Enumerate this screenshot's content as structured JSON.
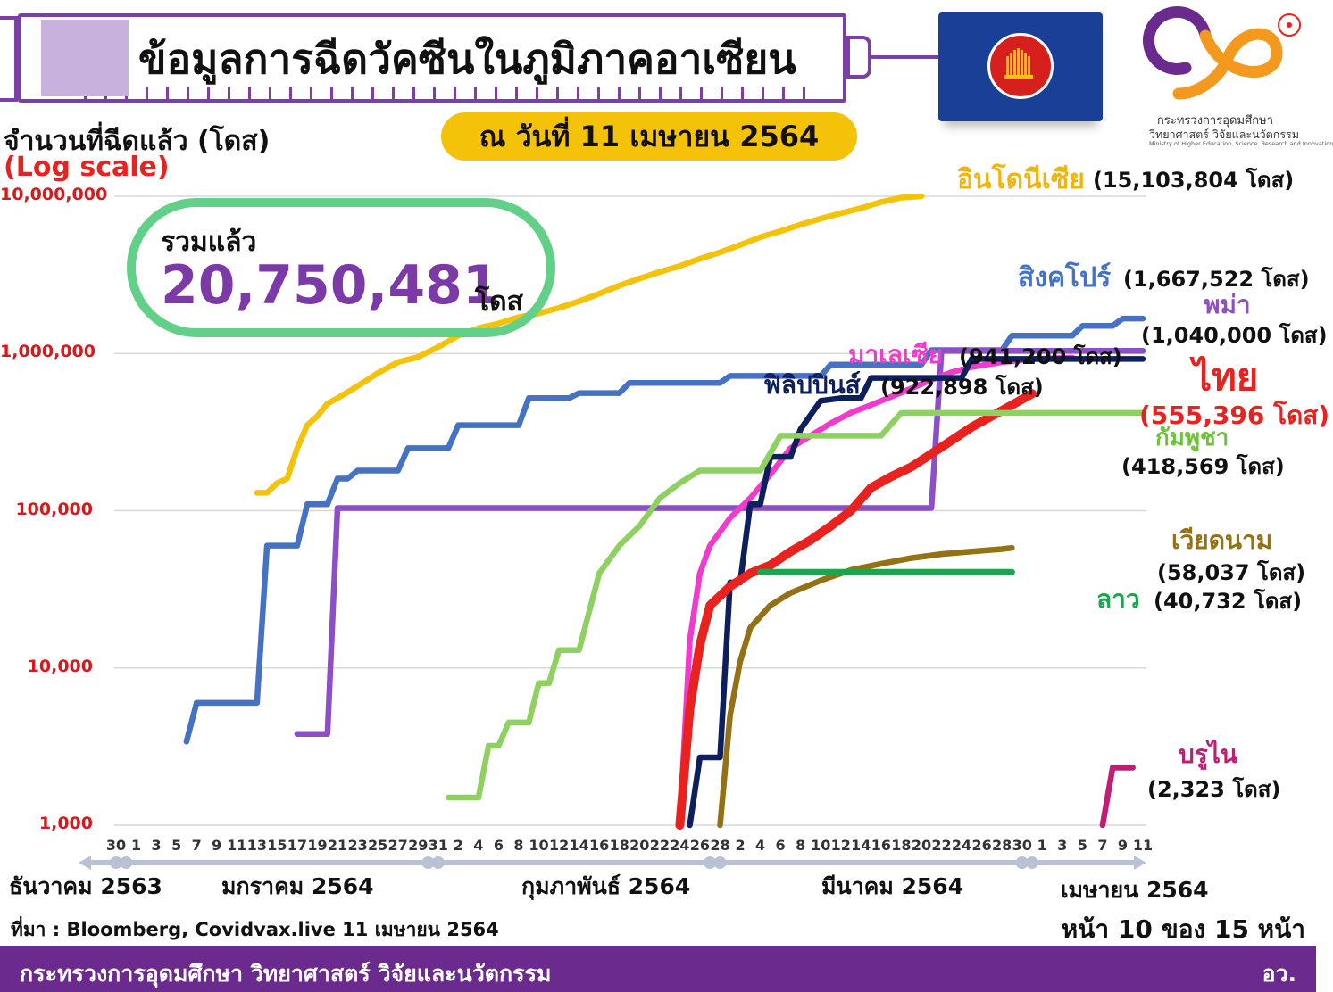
{
  "header": {
    "title": "ข้อมูลการฉีดวัคซีนในภูมิภาคอาเซียน",
    "date": "ณ วันที่ 11 เมษายน 2564"
  },
  "logo": {
    "line1": "กระทรวงการอุดมศึกษา",
    "line2": "วิทยาศาสตร์ วิจัยและนวัตกรรม",
    "line3": "Ministry of Higher Education, Science, Research and Innovation"
  },
  "total": {
    "label": "รวมแล้ว",
    "value": "20,750,481",
    "unit": "โดส"
  },
  "footer": {
    "source": "ที่มา : Bloomberg, Covidvax.live 11 เมษายน 2564",
    "page": "หน้า 10 ของ 15 หน้า",
    "ministry": "กระทรวงการอุดมศึกษา วิทยาศาสตร์ วิจัยและนวัตกรรม",
    "abbr": "อว."
  },
  "chart_data": {
    "type": "line",
    "ylabel": "จำนวนที่ฉีดแล้ว (โดส)",
    "yscale_note": "(Log scale)",
    "yscale": "log",
    "ylim": [
      1000,
      10000000
    ],
    "ytick_labels": [
      "10,000,000",
      "1,000,000",
      "100,000",
      "10,000",
      "1,000"
    ],
    "ytick_values": [
      10000000,
      1000000,
      100000,
      10000,
      1000
    ],
    "xrange_days": [
      0,
      102
    ],
    "x_tick_labels": [
      "30",
      "1",
      "3",
      "5",
      "7",
      "9",
      "11",
      "13",
      "15",
      "17",
      "19",
      "21",
      "23",
      "25",
      "27",
      "29",
      "31",
      "2",
      "4",
      "6",
      "8",
      "10",
      "12",
      "14",
      "16",
      "18",
      "20",
      "22",
      "24",
      "26",
      "28",
      "2",
      "4",
      "6",
      "8",
      "10",
      "12",
      "14",
      "16",
      "18",
      "20",
      "22",
      "24",
      "26",
      "28",
      "30",
      "1",
      "3",
      "5",
      "7",
      "9",
      "11"
    ],
    "months": [
      {
        "label": "ธันวาคม 2563",
        "start_day": 0
      },
      {
        "label": "มกราคม 2564",
        "start_day": 1
      },
      {
        "label": "กุมภาพันธ์ 2564",
        "start_day": 32
      },
      {
        "label": "มีนาคม 2564",
        "start_day": 60
      },
      {
        "label": "เมษายน 2564",
        "start_day": 91
      }
    ],
    "grid": true,
    "series": [
      {
        "name": "อินโดนีเซีย",
        "value_label": "(15,103,804 โดส)",
        "color": "#f5c20a",
        "points": [
          [
            14,
            130000
          ],
          [
            15,
            130000
          ],
          [
            16,
            150000
          ],
          [
            17,
            160000
          ],
          [
            18,
            250000
          ],
          [
            19,
            350000
          ],
          [
            20,
            400000
          ],
          [
            21,
            480000
          ],
          [
            22,
            520000
          ],
          [
            24,
            620000
          ],
          [
            26,
            750000
          ],
          [
            28,
            880000
          ],
          [
            30,
            950000
          ],
          [
            32,
            1100000
          ],
          [
            34,
            1300000
          ],
          [
            36,
            1450000
          ],
          [
            38,
            1550000
          ],
          [
            40,
            1700000
          ],
          [
            42,
            1800000
          ],
          [
            44,
            1950000
          ],
          [
            46,
            2150000
          ],
          [
            48,
            2400000
          ],
          [
            50,
            2700000
          ],
          [
            52,
            3000000
          ],
          [
            54,
            3300000
          ],
          [
            56,
            3600000
          ],
          [
            58,
            4000000
          ],
          [
            60,
            4400000
          ],
          [
            62,
            4900000
          ],
          [
            64,
            5500000
          ],
          [
            66,
            6000000
          ],
          [
            68,
            6600000
          ],
          [
            70,
            7200000
          ],
          [
            72,
            7800000
          ],
          [
            74,
            8400000
          ],
          [
            76,
            9200000
          ],
          [
            78,
            9800000
          ],
          [
            80,
            10000000
          ]
        ]
      },
      {
        "name": "สิงคโปร์",
        "value_label": "(1,667,522 โดส)",
        "color": "#4672c4",
        "points": [
          [
            7,
            3400
          ],
          [
            8,
            6000
          ],
          [
            14,
            6000
          ],
          [
            15,
            60000
          ],
          [
            18,
            60000
          ],
          [
            19,
            110000
          ],
          [
            21,
            110000
          ],
          [
            22,
            160000
          ],
          [
            23,
            160000
          ],
          [
            24,
            180000
          ],
          [
            28,
            180000
          ],
          [
            29,
            250000
          ],
          [
            33,
            250000
          ],
          [
            34,
            350000
          ],
          [
            40,
            350000
          ],
          [
            41,
            520000
          ],
          [
            45,
            520000
          ],
          [
            46,
            560000
          ],
          [
            50,
            560000
          ],
          [
            51,
            650000
          ],
          [
            60,
            650000
          ],
          [
            61,
            720000
          ],
          [
            70,
            720000
          ],
          [
            71,
            850000
          ],
          [
            80,
            850000
          ],
          [
            81,
            1050000
          ],
          [
            88,
            1050000
          ],
          [
            89,
            1300000
          ],
          [
            95,
            1300000
          ],
          [
            96,
            1500000
          ],
          [
            99,
            1500000
          ],
          [
            100,
            1667522
          ],
          [
            102,
            1667522
          ]
        ]
      },
      {
        "name": "พม่า",
        "value_label": "(1,040,000 โดส)",
        "color": "#8d4fc8",
        "points": [
          [
            18,
            3800
          ],
          [
            21,
            3800
          ],
          [
            22,
            104000
          ],
          [
            81,
            104000
          ],
          [
            82,
            1040000
          ],
          [
            102,
            1040000
          ]
        ]
      },
      {
        "name": "มาเลเซีย",
        "value_label": "(941,200 โดส)",
        "color": "#f03ccc",
        "points": [
          [
            56,
            1000
          ],
          [
            57,
            15000
          ],
          [
            58,
            40000
          ],
          [
            59,
            60000
          ],
          [
            61,
            90000
          ],
          [
            63,
            120000
          ],
          [
            65,
            170000
          ],
          [
            67,
            250000
          ],
          [
            69,
            300000
          ],
          [
            71,
            360000
          ],
          [
            73,
            420000
          ],
          [
            75,
            470000
          ],
          [
            77,
            530000
          ],
          [
            79,
            600000
          ],
          [
            81,
            680000
          ],
          [
            83,
            760000
          ],
          [
            85,
            820000
          ],
          [
            88,
            880000
          ],
          [
            91,
            920000
          ],
          [
            95,
            941200
          ]
        ]
      },
      {
        "name": "ฟิลิปปินส์",
        "value_label": "(922,898 โดส)",
        "color": "#0e1f5e",
        "points": [
          [
            57,
            1000
          ],
          [
            58,
            2700
          ],
          [
            60,
            2700
          ],
          [
            61,
            35000
          ],
          [
            62,
            35000
          ],
          [
            63,
            110000
          ],
          [
            64,
            110000
          ],
          [
            65,
            220000
          ],
          [
            67,
            220000
          ],
          [
            68,
            330000
          ],
          [
            70,
            500000
          ],
          [
            72,
            520000
          ],
          [
            74,
            520000
          ],
          [
            75,
            700000
          ],
          [
            84,
            700000
          ],
          [
            85,
            922898
          ],
          [
            102,
            922898
          ]
        ]
      },
      {
        "name": "ไทย",
        "value_label": "(555,396 โดส)",
        "color": "#e8231f",
        "points": [
          [
            56,
            1000
          ],
          [
            57,
            5500
          ],
          [
            58,
            14000
          ],
          [
            59,
            25000
          ],
          [
            61,
            33000
          ],
          [
            63,
            40000
          ],
          [
            65,
            45000
          ],
          [
            67,
            55000
          ],
          [
            69,
            65000
          ],
          [
            71,
            80000
          ],
          [
            73,
            100000
          ],
          [
            75,
            140000
          ],
          [
            77,
            165000
          ],
          [
            79,
            190000
          ],
          [
            81,
            230000
          ],
          [
            83,
            280000
          ],
          [
            85,
            340000
          ],
          [
            87,
            400000
          ],
          [
            89,
            470000
          ],
          [
            91,
            555396
          ]
        ]
      },
      {
        "name": "กัมพูชา",
        "value_label": "(418,569 โดส)",
        "color": "#8ed160",
        "points": [
          [
            33,
            1500
          ],
          [
            36,
            1500
          ],
          [
            37,
            3200
          ],
          [
            38,
            3200
          ],
          [
            39,
            4500
          ],
          [
            41,
            4500
          ],
          [
            42,
            8000
          ],
          [
            43,
            8000
          ],
          [
            44,
            13000
          ],
          [
            46,
            13000
          ],
          [
            48,
            40000
          ],
          [
            50,
            60000
          ],
          [
            52,
            80000
          ],
          [
            54,
            120000
          ],
          [
            56,
            150000
          ],
          [
            58,
            180000
          ],
          [
            64,
            180000
          ],
          [
            66,
            300000
          ],
          [
            76,
            300000
          ],
          [
            78,
            418569
          ],
          [
            102,
            418569
          ]
        ]
      },
      {
        "name": "เวียดนาม",
        "value_label": "(58,037 โดส)",
        "color": "#957116",
        "points": [
          [
            60,
            1000
          ],
          [
            61,
            5000
          ],
          [
            62,
            11000
          ],
          [
            63,
            18000
          ],
          [
            65,
            25000
          ],
          [
            67,
            30000
          ],
          [
            70,
            36000
          ],
          [
            73,
            42000
          ],
          [
            76,
            46000
          ],
          [
            79,
            50000
          ],
          [
            82,
            53000
          ],
          [
            85,
            55000
          ],
          [
            88,
            57000
          ],
          [
            89,
            58037
          ]
        ]
      },
      {
        "name": "ลาว",
        "value_label": "(40,732 โดส)",
        "color": "#1ba54d",
        "points": [
          [
            64,
            40732
          ],
          [
            89,
            40732
          ]
        ]
      },
      {
        "name": "บรูไน",
        "value_label": "(2,323 โดส)",
        "color": "#c01d74",
        "points": [
          [
            98,
            1000
          ],
          [
            99,
            2323
          ],
          [
            101,
            2323
          ]
        ]
      }
    ]
  }
}
